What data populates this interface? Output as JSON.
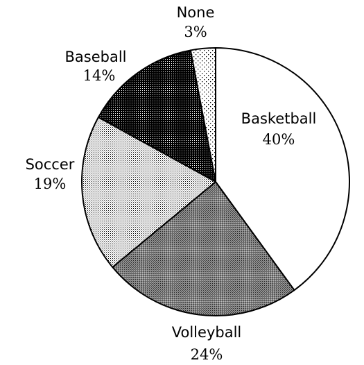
{
  "chart_data": {
    "type": "pie",
    "title": "",
    "slices": [
      {
        "label": "Basketball",
        "value": 40,
        "value_label": "40%",
        "pattern": "white"
      },
      {
        "label": "Volleyball",
        "value": 24,
        "value_label": "24%",
        "pattern": "dense-crosshatch"
      },
      {
        "label": "Soccer",
        "value": 19,
        "value_label": "19%",
        "pattern": "light-dots"
      },
      {
        "label": "Baseball",
        "value": 14,
        "value_label": "14%",
        "pattern": "dark-dots"
      },
      {
        "label": "None",
        "value": 3,
        "value_label": "3%",
        "pattern": "sparse-dots"
      }
    ],
    "start_angle_deg": 0,
    "direction": "clockwise",
    "legend": "none",
    "colors": {
      "stroke": "#000000",
      "background": "#ffffff"
    }
  }
}
